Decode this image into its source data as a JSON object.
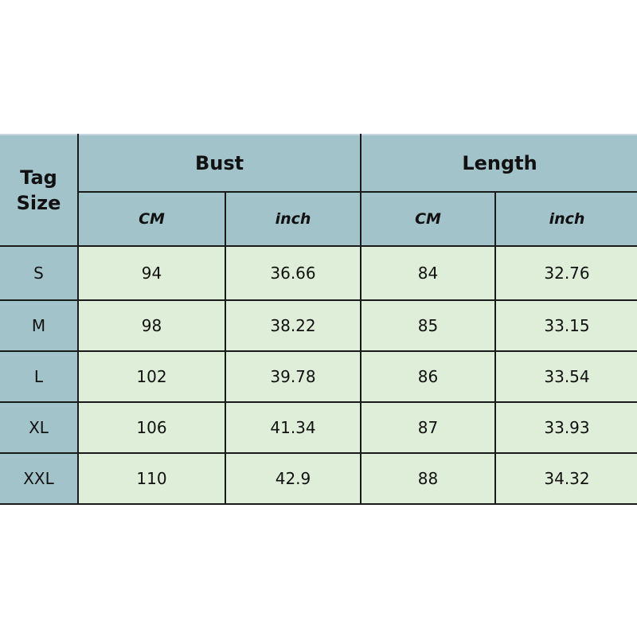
{
  "table": {
    "tag_header": "Tag Size",
    "groups": [
      "Bust",
      "Length"
    ],
    "units": [
      "CM",
      "inch",
      "CM",
      "inch"
    ],
    "rows": [
      {
        "size": "S",
        "values": [
          "94",
          "36.66",
          "84",
          "32.76"
        ]
      },
      {
        "size": "M",
        "values": [
          "98",
          "38.22",
          "85",
          "33.15"
        ]
      },
      {
        "size": "L",
        "values": [
          "102",
          "39.78",
          "86",
          "33.54"
        ]
      },
      {
        "size": "XL",
        "values": [
          "106",
          "41.34",
          "87",
          "33.93"
        ]
      },
      {
        "size": "XXL",
        "values": [
          "110",
          "42.9",
          "88",
          "34.32"
        ]
      }
    ]
  },
  "colors": {
    "header": "#a3c3ca",
    "body": "#dfeed8"
  }
}
